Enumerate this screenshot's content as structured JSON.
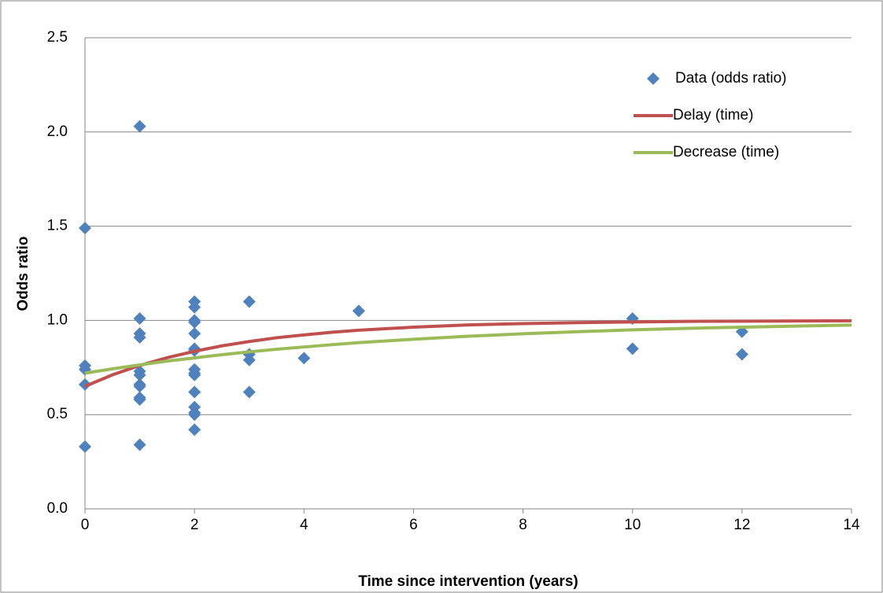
{
  "chart_data": {
    "type": "scatter",
    "xlabel": "Time since intervention (years)",
    "ylabel": "Odds ratio",
    "xlim": [
      0,
      14
    ],
    "xticks": [
      0,
      2,
      4,
      6,
      8,
      10,
      12,
      14
    ],
    "ylim": [
      0,
      2.5
    ],
    "yticks": [
      {
        "value": 0,
        "label": "0.0"
      },
      0.5,
      {
        "value": 1,
        "label": "1.0"
      },
      1.5,
      {
        "value": 2,
        "label": "2.0"
      },
      2.5
    ],
    "grid": true,
    "legend": "upper right",
    "series": [
      {
        "name": "Data (odds ratio)",
        "type": "scatter",
        "color": "#4f81bd",
        "x": [
          0,
          0,
          0,
          0,
          0,
          1,
          1,
          1,
          1,
          1,
          1,
          1,
          1,
          1,
          1,
          1,
          2,
          2,
          2,
          2,
          2,
          2,
          2,
          2,
          2,
          2,
          2,
          2,
          2,
          2,
          2,
          3,
          3,
          3,
          3,
          4,
          5,
          10,
          10,
          12,
          12
        ],
        "values": [
          1.49,
          0.76,
          0.74,
          0.66,
          0.33,
          2.03,
          1.01,
          0.93,
          0.91,
          0.73,
          0.71,
          0.66,
          0.65,
          0.59,
          0.58,
          0.34,
          1.1,
          1.07,
          1.0,
          0.99,
          0.93,
          0.85,
          0.84,
          0.74,
          0.72,
          0.71,
          0.62,
          0.54,
          0.51,
          0.5,
          0.42,
          1.1,
          0.82,
          0.79,
          0.62,
          0.8,
          1.05,
          1.01,
          0.85,
          0.94,
          0.82
        ]
      },
      {
        "name": "Delay (time)",
        "type": "line",
        "color": "#c0504d",
        "x": [
          0,
          0.5,
          1,
          1.5,
          2,
          2.5,
          3,
          3.5,
          4,
          4.5,
          5,
          6,
          7,
          8,
          9,
          10,
          11,
          12,
          13,
          14
        ],
        "values": [
          0.65,
          0.711,
          0.761,
          0.802,
          0.836,
          0.865,
          0.888,
          0.908,
          0.923,
          0.937,
          0.948,
          0.964,
          0.976,
          0.983,
          0.988,
          0.992,
          0.995,
          0.996,
          0.997,
          0.998
        ]
      },
      {
        "name": "Decrease (time)",
        "type": "line",
        "color": "#9bbb59",
        "x": [
          0,
          0.5,
          1,
          1.5,
          2,
          2.5,
          3,
          3.5,
          4,
          4.5,
          5,
          6,
          7,
          8,
          9,
          10,
          11,
          12,
          13,
          14
        ],
        "values": [
          0.72,
          0.743,
          0.764,
          0.784,
          0.801,
          0.818,
          0.833,
          0.847,
          0.859,
          0.871,
          0.882,
          0.9,
          0.916,
          0.929,
          0.94,
          0.95,
          0.958,
          0.964,
          0.97,
          0.975
        ]
      }
    ]
  }
}
